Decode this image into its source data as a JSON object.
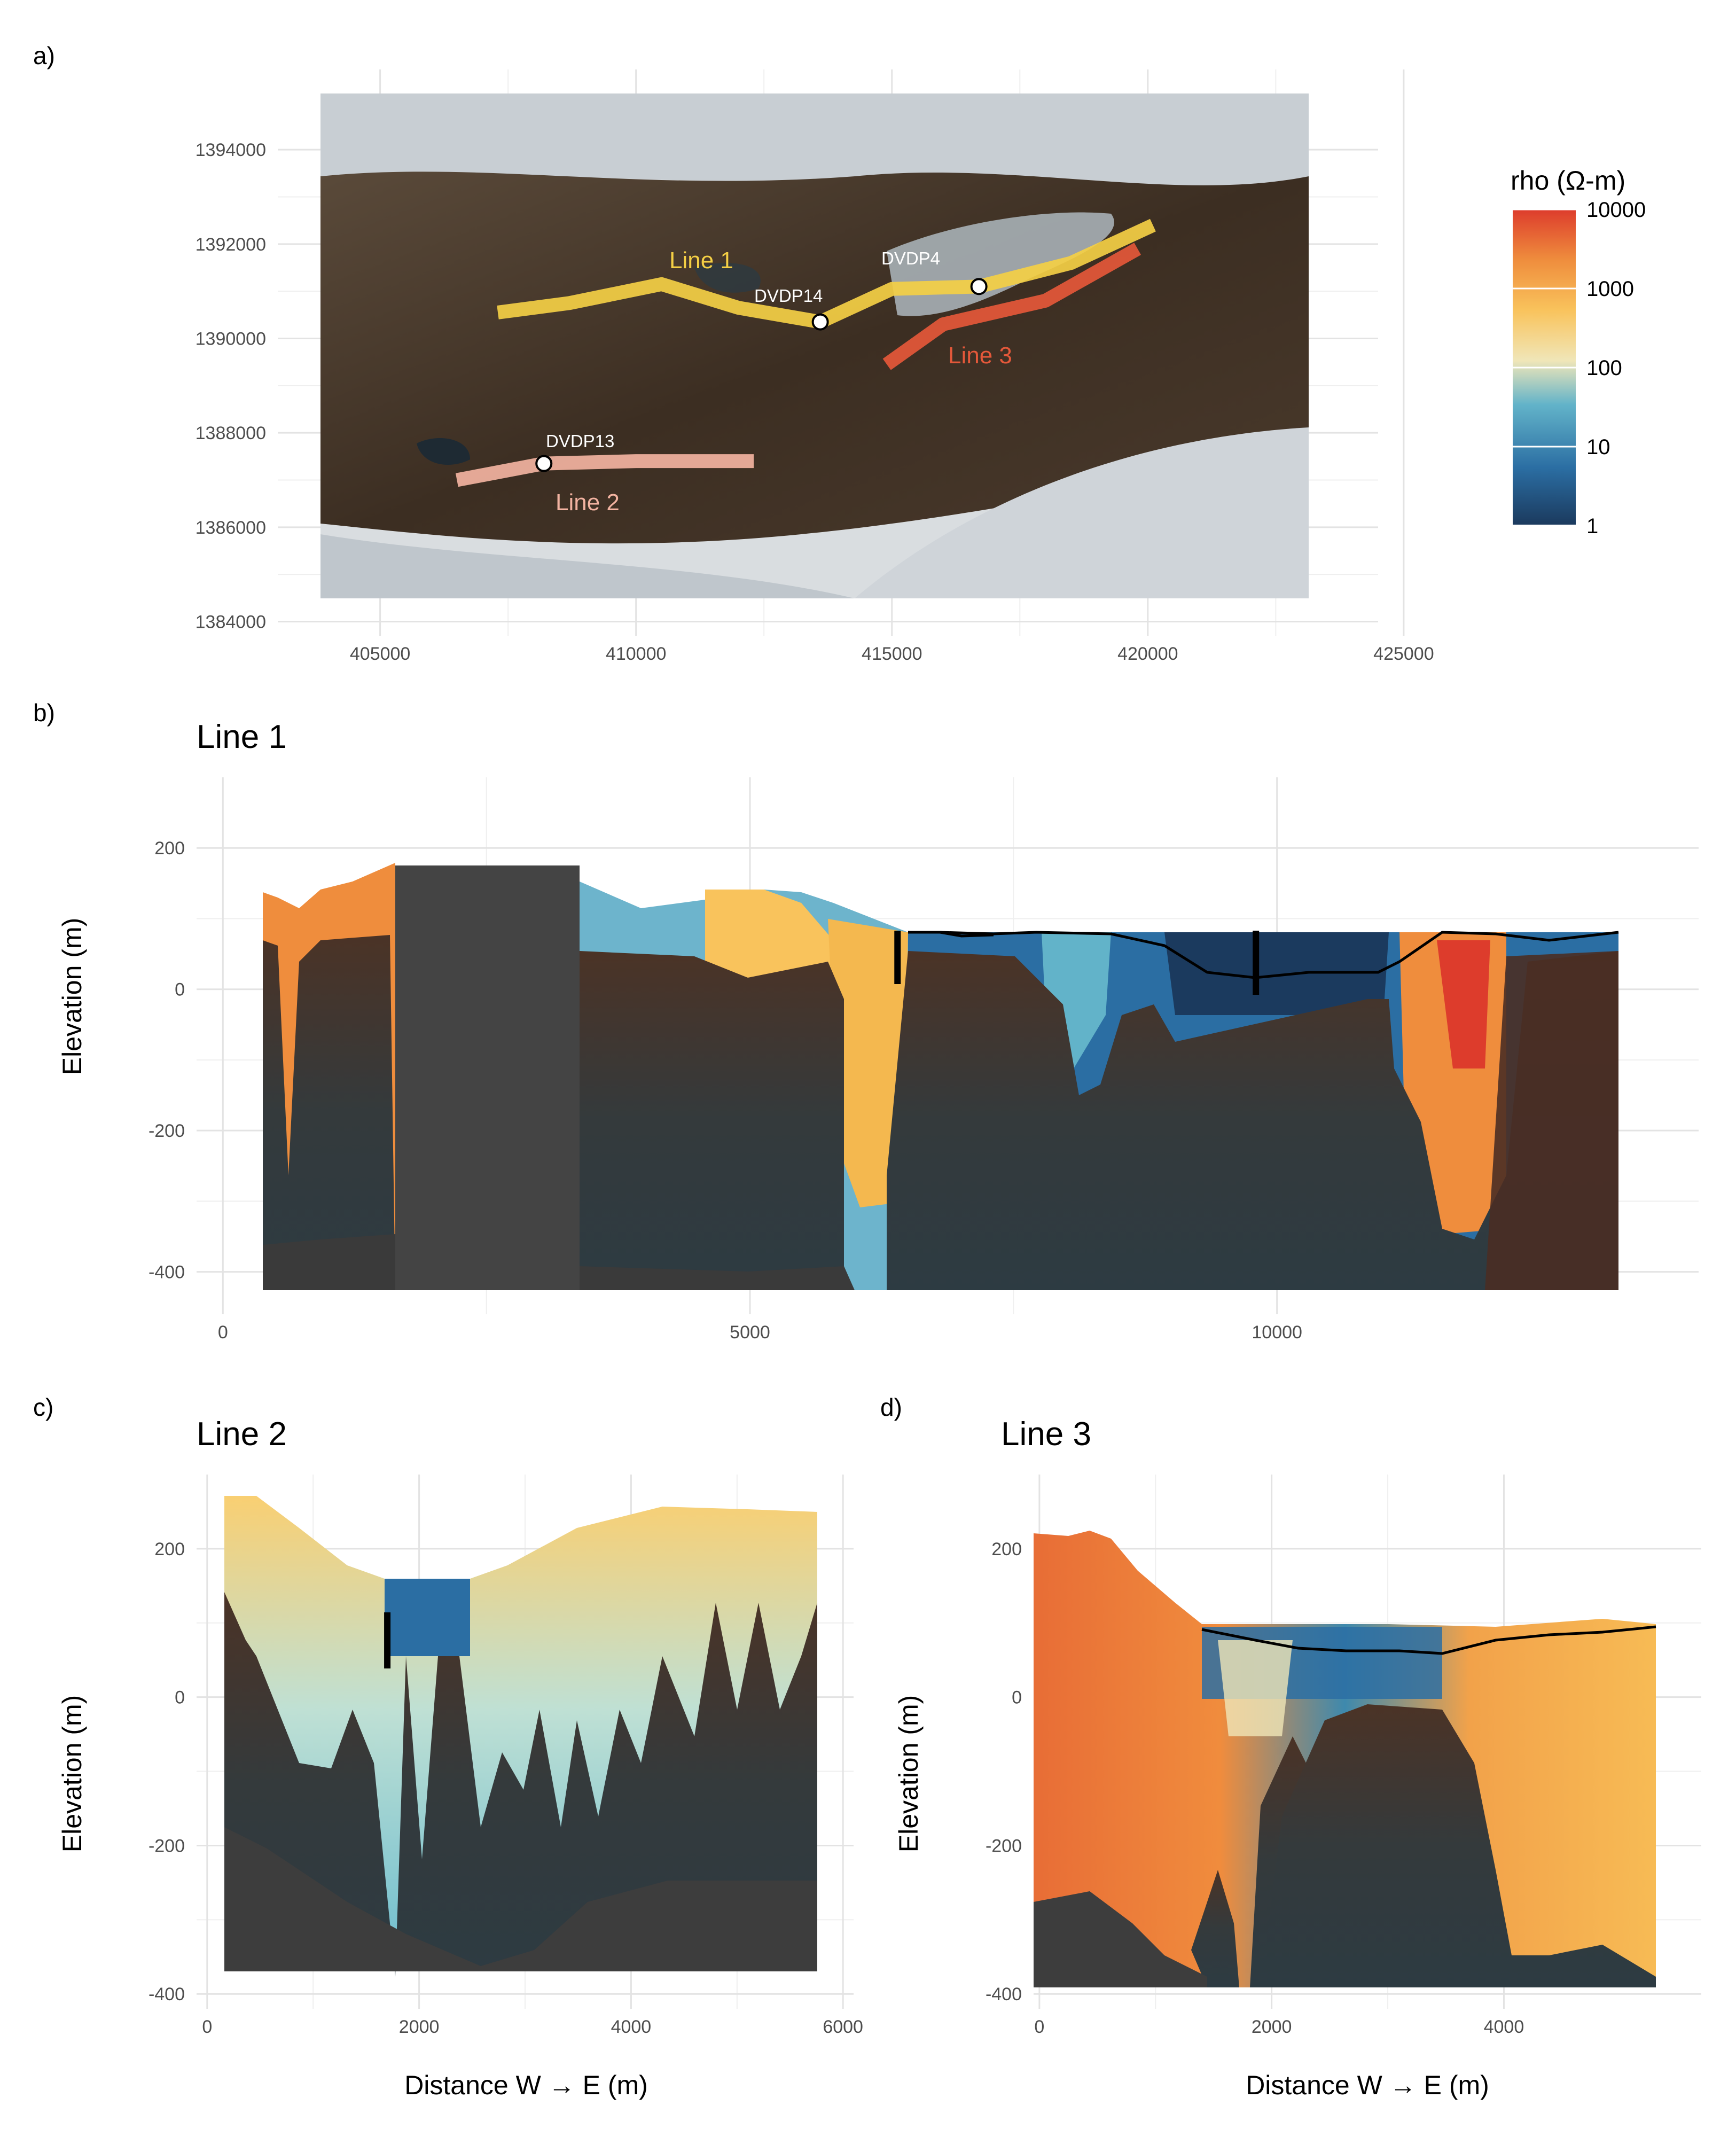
{
  "colors": {
    "line1": "#f4cf45",
    "line2": "#f2b3a1",
    "line3": "#e4583a",
    "shade": "#3a3a3a",
    "scale": [
      "#1b3a5e",
      "#2b6ea3",
      "#62b3c9",
      "#f0e6b8",
      "#f9c35c",
      "#ef8d3d",
      "#dd3c2c"
    ]
  },
  "panels": {
    "a": {
      "label": "a)"
    },
    "b": {
      "label": "b)",
      "title": "Line 1"
    },
    "c": {
      "label": "c)",
      "title": "Line 2"
    },
    "d": {
      "label": "d)",
      "title": "Line 3"
    }
  },
  "map": {
    "x_ticks": [
      "405000",
      "410000",
      "415000",
      "420000",
      "425000"
    ],
    "y_ticks": [
      "1394000",
      "1392000",
      "1390000",
      "1388000",
      "1386000",
      "1384000"
    ],
    "lines": [
      {
        "name": "Line 1",
        "color": "#f4cf45"
      },
      {
        "name": "Line 2",
        "color": "#f2b3a1"
      },
      {
        "name": "Line 3",
        "color": "#e4583a"
      }
    ],
    "boreholes": [
      "DVDP4",
      "DVDP14",
      "DVDP13"
    ]
  },
  "legend": {
    "title": "rho (Ω-m)",
    "ticks": [
      "10000",
      "1000",
      "100",
      "10",
      "1"
    ]
  },
  "axes": {
    "ylabel": "Elevation (m)",
    "xlabel": "Distance W → E (m)"
  },
  "chart_data": [
    {
      "type": "heatmap",
      "panel": "a",
      "description_source": "map",
      "x_ticks": [
        405000,
        410000,
        415000,
        420000,
        425000
      ],
      "y_ticks": [
        1394000,
        1392000,
        1390000,
        1388000,
        1386000,
        1384000
      ],
      "xlim": [
        403000,
        424500
      ],
      "ylim": [
        1383700,
        1395700
      ],
      "series": [
        {
          "name": "Line 1",
          "x": [
            407300,
            408700,
            410500,
            412000,
            413600,
            415000,
            416700,
            418500,
            420100
          ],
          "y": [
            1390550,
            1390750,
            1391150,
            1390650,
            1390350,
            1391050,
            1391100,
            1391600,
            1392400
          ]
        },
        {
          "name": "Line 2",
          "x": [
            406500,
            408200,
            410000,
            412300
          ],
          "y": [
            1387000,
            1387350,
            1387400,
            1387400
          ]
        },
        {
          "name": "Line 3",
          "x": [
            414900,
            416000,
            418000,
            419800
          ],
          "y": [
            1389450,
            1390300,
            1390800,
            1391900
          ]
        }
      ],
      "points": [
        {
          "label": "DVDP4",
          "x": 416700,
          "y": 1391100
        },
        {
          "label": "DVDP14",
          "x": 413600,
          "y": 1390350
        },
        {
          "label": "DVDP13",
          "x": 408200,
          "y": 1387350
        }
      ]
    },
    {
      "type": "heatmap",
      "panel": "b",
      "title": "Line 1",
      "ylabel": "Elevation (m)",
      "x_ticks": [
        0,
        5000,
        10000
      ],
      "y_ticks": [
        200,
        0,
        -200,
        -400
      ],
      "xlim": [
        -250,
        14000
      ],
      "ylim": [
        -460,
        300
      ],
      "surface": {
        "x": [
          0,
          500,
          1300,
          3100,
          4000,
          5000,
          5500,
          6300,
          9000,
          11000,
          13400
        ],
        "y": [
          140,
          150,
          180,
          180,
          110,
          140,
          130,
          90,
          90,
          90,
          85
        ]
      },
      "boreholes_x": [
        6400,
        9800
      ]
    },
    {
      "type": "heatmap",
      "panel": "c",
      "title": "Line 2",
      "ylabel": "Elevation (m)",
      "xlabel": "Distance W → E (m)",
      "x_ticks": [
        0,
        2000,
        4000,
        6000
      ],
      "y_ticks": [
        200,
        0,
        -200,
        -400
      ],
      "xlim": [
        -100,
        6100
      ],
      "ylim": [
        -420,
        300
      ],
      "surface": {
        "x": [
          0,
          500,
          1500,
          2400,
          3500,
          4300,
          5700
        ],
        "y": [
          275,
          250,
          115,
          115,
          200,
          260,
          245
        ]
      },
      "boreholes_x": [
        1700
      ]
    },
    {
      "type": "heatmap",
      "panel": "d",
      "title": "Line 3",
      "ylabel": "Elevation (m)",
      "xlabel": "Distance W → E (m)",
      "x_ticks": [
        0,
        2000,
        4000
      ],
      "y_ticks": [
        200,
        0,
        -200,
        -400
      ],
      "xlim": [
        -50,
        5700
      ],
      "ylim": [
        -420,
        300
      ],
      "surface": {
        "x": [
          0,
          800,
          1500,
          3000,
          4200,
          5650
        ],
        "y": [
          215,
          200,
          90,
          90,
          100,
          95
        ]
      }
    }
  ]
}
